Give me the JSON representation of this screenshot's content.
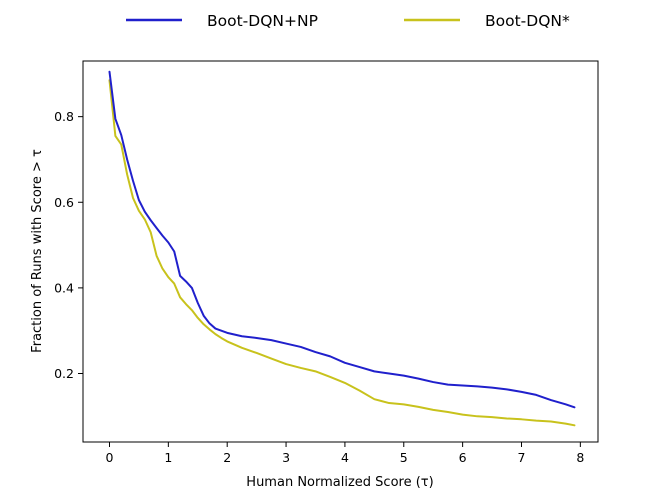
{
  "chart_data": {
    "type": "line",
    "title": "",
    "xlabel": "Human Normalized Score (τ)",
    "ylabel": "Fraction of Runs with Score > τ",
    "xlim": [
      -0.45,
      8.3
    ],
    "ylim": [
      0.04,
      0.93
    ],
    "xticks": [
      0,
      1,
      2,
      3,
      4,
      5,
      6,
      7,
      8
    ],
    "xtick_labels": [
      "0",
      "1",
      "2",
      "3",
      "4",
      "5",
      "6",
      "7",
      "8"
    ],
    "yticks": [
      0.2,
      0.4,
      0.6,
      0.8
    ],
    "ytick_labels": [
      "0.2",
      "0.4",
      "0.6",
      "0.8"
    ],
    "grid": false,
    "legend_position": "top-outside",
    "series": [
      {
        "name": "Boot-DQN+NP",
        "color": "#2020cc",
        "x": [
          0,
          0.1,
          0.2,
          0.3,
          0.4,
          0.5,
          0.6,
          0.7,
          0.8,
          0.9,
          1.0,
          1.1,
          1.2,
          1.3,
          1.4,
          1.5,
          1.6,
          1.7,
          1.8,
          1.9,
          2.0,
          2.25,
          2.5,
          2.75,
          3.0,
          3.25,
          3.5,
          3.75,
          4.0,
          4.25,
          4.5,
          4.75,
          5.0,
          5.25,
          5.5,
          5.75,
          6.0,
          6.25,
          6.5,
          6.75,
          7.0,
          7.25,
          7.5,
          7.75,
          7.9
        ],
        "y": [
          0.905,
          0.795,
          0.757,
          0.7,
          0.65,
          0.605,
          0.578,
          0.558,
          0.54,
          0.522,
          0.506,
          0.485,
          0.428,
          0.415,
          0.4,
          0.365,
          0.335,
          0.317,
          0.305,
          0.3,
          0.295,
          0.287,
          0.283,
          0.278,
          0.27,
          0.262,
          0.25,
          0.24,
          0.225,
          0.215,
          0.205,
          0.2,
          0.195,
          0.188,
          0.18,
          0.174,
          0.172,
          0.17,
          0.167,
          0.163,
          0.157,
          0.15,
          0.138,
          0.128,
          0.121
        ]
      },
      {
        "name": "Boot-DQN*",
        "color": "#c8c21c",
        "x": [
          0,
          0.1,
          0.2,
          0.3,
          0.4,
          0.5,
          0.6,
          0.7,
          0.8,
          0.9,
          1.0,
          1.1,
          1.2,
          1.3,
          1.4,
          1.5,
          1.6,
          1.7,
          1.8,
          1.9,
          2.0,
          2.25,
          2.5,
          2.75,
          3.0,
          3.25,
          3.5,
          3.75,
          4.0,
          4.25,
          4.5,
          4.75,
          5.0,
          5.25,
          5.5,
          5.75,
          6.0,
          6.25,
          6.5,
          6.75,
          7.0,
          7.25,
          7.5,
          7.75,
          7.9
        ],
        "y": [
          0.885,
          0.755,
          0.735,
          0.665,
          0.61,
          0.58,
          0.56,
          0.53,
          0.475,
          0.445,
          0.425,
          0.41,
          0.378,
          0.362,
          0.348,
          0.33,
          0.315,
          0.303,
          0.292,
          0.283,
          0.275,
          0.26,
          0.248,
          0.235,
          0.222,
          0.213,
          0.205,
          0.192,
          0.178,
          0.16,
          0.14,
          0.131,
          0.128,
          0.122,
          0.115,
          0.11,
          0.104,
          0.1,
          0.098,
          0.095,
          0.093,
          0.09,
          0.088,
          0.083,
          0.079
        ]
      }
    ]
  }
}
